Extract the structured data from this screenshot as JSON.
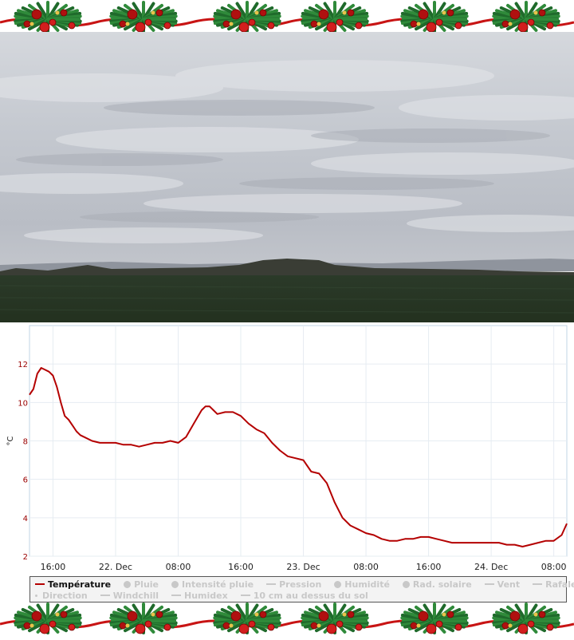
{
  "chart_data": {
    "type": "line",
    "ylabel": "°C",
    "ylim": [
      2,
      14
    ],
    "yticks": [
      2,
      4,
      6,
      8,
      10,
      12
    ],
    "xlim": [
      "2023-12-21 13:00",
      "2023-12-24 09:40"
    ],
    "xticks": [
      {
        "at": "2023-12-21 16:00",
        "label": "16:00"
      },
      {
        "at": "2023-12-22 00:00",
        "label": "22. Dec"
      },
      {
        "at": "2023-12-22 08:00",
        "label": "08:00"
      },
      {
        "at": "2023-12-22 16:00",
        "label": "16:00"
      },
      {
        "at": "2023-12-23 00:00",
        "label": "23. Dec"
      },
      {
        "at": "2023-12-23 08:00",
        "label": "08:00"
      },
      {
        "at": "2023-12-23 16:00",
        "label": "16:00"
      },
      {
        "at": "2023-12-24 00:00",
        "label": "24. Dec"
      },
      {
        "at": "2023-12-24 08:00",
        "label": "08:00"
      }
    ],
    "grid": true,
    "legend_position": "bottom",
    "series": [
      {
        "name": "Température",
        "color": "#b40000",
        "points": [
          [
            "2023-12-21 13:00",
            10.4
          ],
          [
            "2023-12-21 13:30",
            10.7
          ],
          [
            "2023-12-21 14:00",
            11.5
          ],
          [
            "2023-12-21 14:30",
            11.8
          ],
          [
            "2023-12-21 15:00",
            11.7
          ],
          [
            "2023-12-21 15:30",
            11.6
          ],
          [
            "2023-12-21 16:00",
            11.4
          ],
          [
            "2023-12-21 16:30",
            10.8
          ],
          [
            "2023-12-21 17:00",
            10.0
          ],
          [
            "2023-12-21 17:30",
            9.3
          ],
          [
            "2023-12-21 18:00",
            9.1
          ],
          [
            "2023-12-21 18:30",
            8.8
          ],
          [
            "2023-12-21 19:00",
            8.5
          ],
          [
            "2023-12-21 19:30",
            8.3
          ],
          [
            "2023-12-21 20:00",
            8.2
          ],
          [
            "2023-12-21 21:00",
            8.0
          ],
          [
            "2023-12-21 22:00",
            7.9
          ],
          [
            "2023-12-22 00:00",
            7.9
          ],
          [
            "2023-12-22 01:00",
            7.8
          ],
          [
            "2023-12-22 02:00",
            7.8
          ],
          [
            "2023-12-22 03:00",
            7.7
          ],
          [
            "2023-12-22 04:00",
            7.8
          ],
          [
            "2023-12-22 05:00",
            7.9
          ],
          [
            "2023-12-22 06:00",
            7.9
          ],
          [
            "2023-12-22 07:00",
            8.0
          ],
          [
            "2023-12-22 08:00",
            7.9
          ],
          [
            "2023-12-22 09:00",
            8.2
          ],
          [
            "2023-12-22 10:00",
            8.9
          ],
          [
            "2023-12-22 11:00",
            9.6
          ],
          [
            "2023-12-22 11:30",
            9.8
          ],
          [
            "2023-12-22 12:00",
            9.8
          ],
          [
            "2023-12-22 12:30",
            9.6
          ],
          [
            "2023-12-22 13:00",
            9.4
          ],
          [
            "2023-12-22 14:00",
            9.5
          ],
          [
            "2023-12-22 15:00",
            9.5
          ],
          [
            "2023-12-22 16:00",
            9.3
          ],
          [
            "2023-12-22 17:00",
            8.9
          ],
          [
            "2023-12-22 18:00",
            8.6
          ],
          [
            "2023-12-22 19:00",
            8.4
          ],
          [
            "2023-12-22 20:00",
            7.9
          ],
          [
            "2023-12-22 21:00",
            7.5
          ],
          [
            "2023-12-22 22:00",
            7.2
          ],
          [
            "2023-12-22 23:00",
            7.1
          ],
          [
            "2023-12-23 00:00",
            7.0
          ],
          [
            "2023-12-23 01:00",
            6.4
          ],
          [
            "2023-12-23 02:00",
            6.3
          ],
          [
            "2023-12-23 03:00",
            5.8
          ],
          [
            "2023-12-23 04:00",
            4.8
          ],
          [
            "2023-12-23 05:00",
            4.0
          ],
          [
            "2023-12-23 06:00",
            3.6
          ],
          [
            "2023-12-23 07:00",
            3.4
          ],
          [
            "2023-12-23 08:00",
            3.2
          ],
          [
            "2023-12-23 09:00",
            3.1
          ],
          [
            "2023-12-23 10:00",
            2.9
          ],
          [
            "2023-12-23 11:00",
            2.8
          ],
          [
            "2023-12-23 12:00",
            2.8
          ],
          [
            "2023-12-23 13:00",
            2.9
          ],
          [
            "2023-12-23 14:00",
            2.9
          ],
          [
            "2023-12-23 15:00",
            3.0
          ],
          [
            "2023-12-23 16:00",
            3.0
          ],
          [
            "2023-12-23 17:00",
            2.9
          ],
          [
            "2023-12-23 18:00",
            2.8
          ],
          [
            "2023-12-23 19:00",
            2.7
          ],
          [
            "2023-12-23 20:00",
            2.7
          ],
          [
            "2023-12-23 21:00",
            2.7
          ],
          [
            "2023-12-23 22:00",
            2.7
          ],
          [
            "2023-12-23 23:00",
            2.7
          ],
          [
            "2023-12-24 00:00",
            2.7
          ],
          [
            "2023-12-24 01:00",
            2.7
          ],
          [
            "2023-12-24 02:00",
            2.6
          ],
          [
            "2023-12-24 03:00",
            2.6
          ],
          [
            "2023-12-24 04:00",
            2.5
          ],
          [
            "2023-12-24 05:00",
            2.6
          ],
          [
            "2023-12-24 06:00",
            2.7
          ],
          [
            "2023-12-24 07:00",
            2.8
          ],
          [
            "2023-12-24 08:00",
            2.8
          ],
          [
            "2023-12-24 09:00",
            3.1
          ],
          [
            "2023-12-24 09:40",
            3.7
          ]
        ]
      }
    ]
  },
  "legend": {
    "row1": [
      {
        "label": "Température",
        "symbol": "line",
        "active": true
      },
      {
        "label": "Pluie",
        "symbol": "dot",
        "active": false
      },
      {
        "label": "Intensité pluie",
        "symbol": "dot",
        "active": false
      },
      {
        "label": "Pression",
        "symbol": "line",
        "active": false
      },
      {
        "label": "Humidité",
        "symbol": "dot",
        "active": false
      },
      {
        "label": "Rad. solaire",
        "symbol": "dot",
        "active": false
      },
      {
        "label": "Vent",
        "symbol": "line",
        "active": false
      },
      {
        "label": "Rafale",
        "symbol": "line",
        "active": false
      }
    ],
    "row2": [
      {
        "label": "Direction",
        "symbol": "small-dot",
        "active": false
      },
      {
        "label": "Windchill",
        "symbol": "line",
        "active": false
      },
      {
        "label": "Humidex",
        "symbol": "line",
        "active": false
      },
      {
        "label": "10 cm au dessus du sol",
        "symbol": "line",
        "active": false
      }
    ]
  },
  "colors": {
    "line": "#b40000",
    "axis_text": "#9a0000",
    "grid": "#e6ecf2",
    "plot_border": "#c0d4e6",
    "legend_inactive": "#c8c8c8",
    "sky": "#c9cdd4",
    "field": "#2a3a27"
  }
}
